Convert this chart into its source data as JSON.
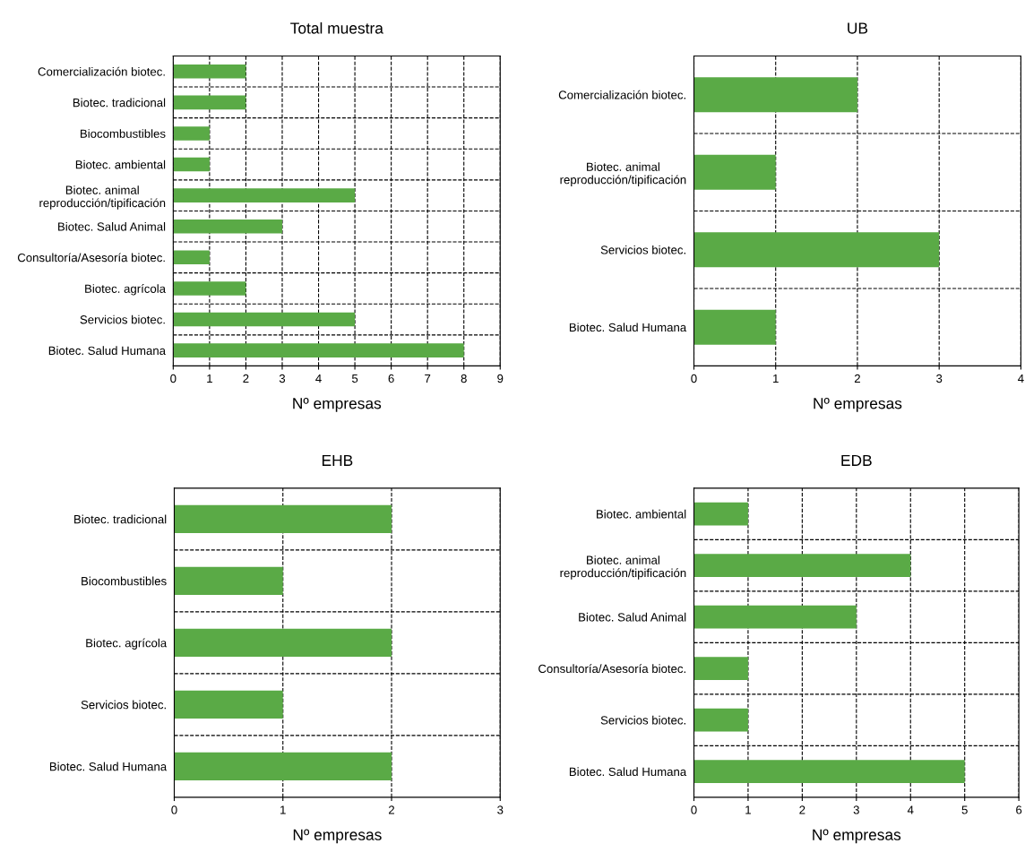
{
  "chart_data": [
    {
      "type": "bar",
      "orientation": "horizontal",
      "title": "Total muestra",
      "xlabel": "Nº empresas",
      "categories": [
        "Comercialización biotec.",
        "Biotec. tradicional",
        "Biocombustibles",
        "Biotec. ambiental",
        "Biotec. animal\nreproducción/tipificación",
        "Biotec. Salud Animal",
        "Consultoría/Asesoría biotec.",
        "Biotec. agrícola",
        "Servicios biotec.",
        "Biotec. Salud Humana"
      ],
      "values": [
        2,
        2,
        1,
        1,
        5,
        3,
        1,
        2,
        5,
        8
      ],
      "color": "#5aaa46",
      "xlim": [
        0,
        9
      ],
      "xticks": [
        0,
        1,
        2,
        3,
        4,
        5,
        6,
        7,
        8,
        9
      ],
      "grid": true,
      "line_style": "dashed"
    },
    {
      "type": "bar",
      "orientation": "horizontal",
      "title": "UB",
      "xlabel": "Nº empresas",
      "categories": [
        "Comercialización biotec.",
        "Biotec. animal\nreproducción/tipificación",
        "Servicios biotec.",
        "Biotec. Salud Humana"
      ],
      "values": [
        2,
        1,
        3,
        1
      ],
      "color": "#5aaa46",
      "xlim": [
        0,
        4
      ],
      "xticks": [
        0,
        1,
        2,
        3,
        4
      ],
      "grid": true,
      "line_style": "dashed"
    },
    {
      "type": "bar",
      "orientation": "horizontal",
      "title": "EHB",
      "xlabel": "Nº empresas",
      "categories": [
        "Biotec. tradicional",
        "Biocombustibles",
        "Biotec. agrícola",
        "Servicios biotec.",
        "Biotec. Salud Humana"
      ],
      "values": [
        2,
        1,
        2,
        1,
        2
      ],
      "color": "#5aaa46",
      "xlim": [
        0,
        3
      ],
      "xticks": [
        0,
        1,
        2,
        3
      ],
      "grid": true,
      "line_style": "dashed"
    },
    {
      "type": "bar",
      "orientation": "horizontal",
      "title": "EDB",
      "xlabel": "Nº empresas",
      "categories": [
        "Biotec. ambiental",
        "Biotec. animal\nreproducción/tipificación",
        "Biotec. Salud Animal",
        "Consultoría/Asesoría biotec.",
        "Servicios biotec.",
        "Biotec. Salud Humana"
      ],
      "values": [
        1,
        4,
        3,
        1,
        1,
        5
      ],
      "color": "#5aaa46",
      "xlim": [
        0,
        6
      ],
      "xticks": [
        0,
        1,
        2,
        3,
        4,
        5,
        6
      ],
      "grid": true,
      "line_style": "dashed"
    }
  ]
}
